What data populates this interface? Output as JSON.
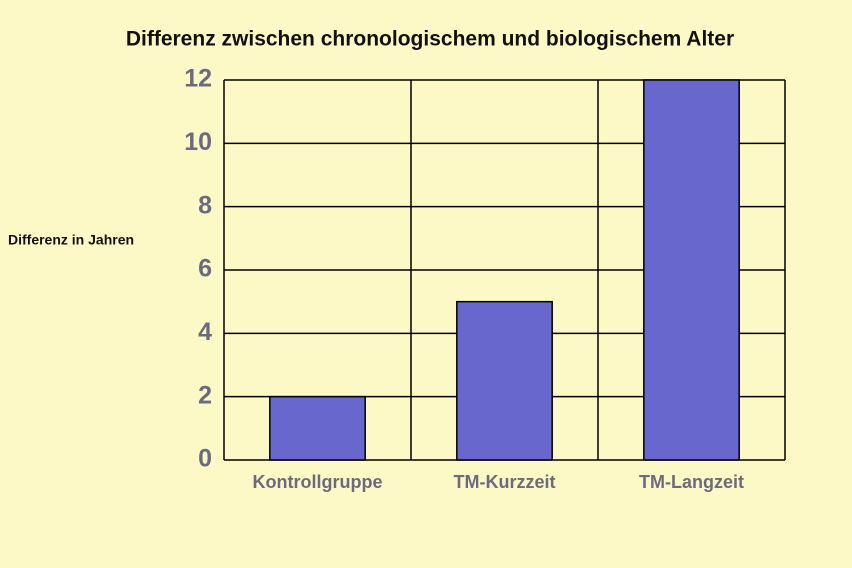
{
  "chart_data": {
    "type": "bar",
    "title": "Differenz zwischen chronologischem und biologischem Alter",
    "y_label": "Differenz in Jahren",
    "categories": [
      "Kontrollgruppe",
      "TM-Kurzzeit",
      "TM-Langzeit"
    ],
    "values": [
      2,
      5,
      12
    ],
    "color": "#6767cd",
    "ylim": [
      0,
      12
    ],
    "yticks": [
      0,
      2,
      4,
      6,
      8,
      10,
      12
    ],
    "grid": true
  }
}
